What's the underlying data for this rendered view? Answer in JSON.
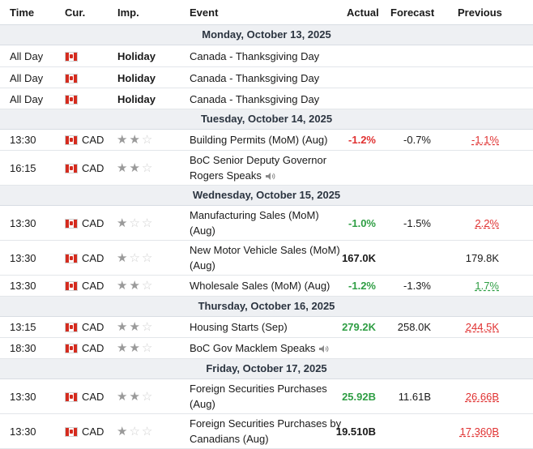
{
  "headers": {
    "time": "Time",
    "cur": "Cur.",
    "imp": "Imp.",
    "event": "Event",
    "actual": "Actual",
    "forecast": "Forecast",
    "previous": "Previous"
  },
  "days": [
    {
      "label": "Monday, October 13, 2025"
    },
    {
      "label": "Tuesday, October 14, 2025"
    },
    {
      "label": "Wednesday, October 15, 2025"
    },
    {
      "label": "Thursday, October 16, 2025"
    },
    {
      "label": "Friday, October 17, 2025"
    }
  ],
  "rows": [
    {
      "time": "All Day",
      "cur": "",
      "imp": "Holiday",
      "event1": "Canada - Thanksgiving Day",
      "event2": "",
      "actual": "",
      "forecast": "",
      "previous": ""
    },
    {
      "time": "All Day",
      "cur": "",
      "imp": "Holiday",
      "event1": "Canada - Thanksgiving Day",
      "event2": "",
      "actual": "",
      "forecast": "",
      "previous": ""
    },
    {
      "time": "All Day",
      "cur": "",
      "imp": "Holiday",
      "event1": "Canada - Thanksgiving Day",
      "event2": "",
      "actual": "",
      "forecast": "",
      "previous": ""
    },
    {
      "time": "13:30",
      "cur": "CAD",
      "stars": 2,
      "event1": "Building Permits (MoM) (Aug)",
      "event2": "",
      "actual": "-1.2%",
      "forecast": "-0.7%",
      "previous": "-1.1%"
    },
    {
      "time": "16:15",
      "cur": "CAD",
      "stars": 2,
      "event1": "BoC Senior Deputy Governor",
      "event2": "Rogers Speaks",
      "actual": "",
      "forecast": "",
      "previous": ""
    },
    {
      "time": "13:30",
      "cur": "CAD",
      "stars": 1,
      "event1": "Manufacturing Sales (MoM)",
      "event2": "(Aug)",
      "actual": "-1.0%",
      "forecast": "-1.5%",
      "previous": "2.2%"
    },
    {
      "time": "13:30",
      "cur": "CAD",
      "stars": 1,
      "event1": "New Motor Vehicle Sales (MoM)",
      "event2": "(Aug)",
      "actual": "167.0K",
      "forecast": "",
      "previous": "179.8K"
    },
    {
      "time": "13:30",
      "cur": "CAD",
      "stars": 2,
      "event1": "Wholesale Sales (MoM) (Aug)",
      "event2": "",
      "actual": "-1.2%",
      "forecast": "-1.3%",
      "previous": "1.7%"
    },
    {
      "time": "13:15",
      "cur": "CAD",
      "stars": 2,
      "event1": "Housing Starts (Sep)",
      "event2": "",
      "actual": "279.2K",
      "forecast": "258.0K",
      "previous": "244.5K"
    },
    {
      "time": "18:30",
      "cur": "CAD",
      "stars": 2,
      "event1": "BoC Gov Macklem Speaks",
      "event2": "",
      "actual": "",
      "forecast": "",
      "previous": ""
    },
    {
      "time": "13:30",
      "cur": "CAD",
      "stars": 2,
      "event1": "Foreign Securities Purchases",
      "event2": "(Aug)",
      "actual": "25.92B",
      "forecast": "11.61B",
      "previous": "26.66B"
    },
    {
      "time": "13:30",
      "cur": "CAD",
      "stars": 1,
      "event1": "Foreign Securities Purchases by",
      "event2": "Canadians (Aug)",
      "actual": "19.510B",
      "forecast": "",
      "previous": "17.360B"
    }
  ],
  "colors": {
    "negative": "#e03131",
    "positive": "#2f9e44",
    "day_bg": "#eef0f3",
    "flag_red": "#d52b1e"
  },
  "icons": {
    "flag": "canada-flag-icon",
    "star": "star-icon",
    "speaker": "speaker-icon"
  }
}
